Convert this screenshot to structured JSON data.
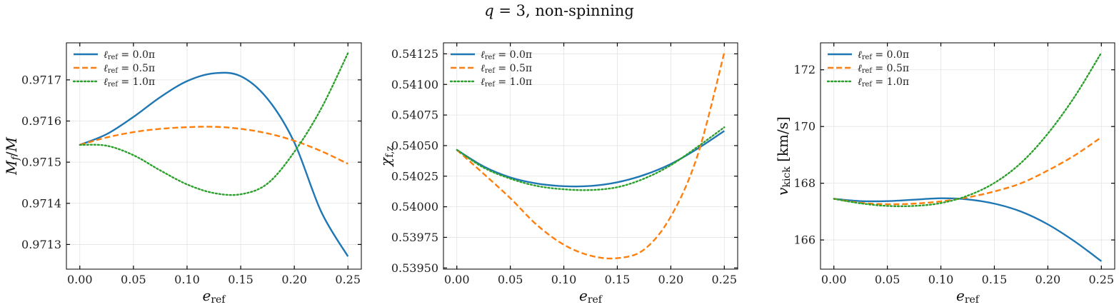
{
  "figure": {
    "title": "q = 3, non-spinning"
  },
  "chart_data": [
    {
      "type": "line",
      "xlabel": "e_ref",
      "ylabel": "M_f/M",
      "xlim": [
        -0.0125,
        0.2625
      ],
      "ylim": [
        0.97124,
        0.97179
      ],
      "xticks": [
        0.0,
        0.05,
        0.1,
        0.15,
        0.2,
        0.25
      ],
      "xtick_labels": [
        "0.00",
        "0.05",
        "0.10",
        "0.15",
        "0.20",
        "0.25"
      ],
      "yticks": [
        0.9713,
        0.9714,
        0.9715,
        0.9716,
        0.9717
      ],
      "ytick_labels": [
        "0.9713",
        "0.9714",
        "0.9715",
        "0.9716",
        "0.9717"
      ],
      "grid": true,
      "legend_position": "top-left",
      "x": [
        0.0,
        0.025,
        0.05,
        0.075,
        0.1,
        0.125,
        0.15,
        0.175,
        0.2,
        0.225,
        0.25
      ],
      "series": [
        {
          "name": "ℓ_ref = 0.0π",
          "color": "#1f77b4",
          "style": "solid",
          "values": [
            0.971542,
            0.971568,
            0.97161,
            0.971658,
            0.971697,
            0.971716,
            0.971709,
            0.971654,
            0.971548,
            0.97138,
            0.971271
          ]
        },
        {
          "name": "ℓ_ref = 0.5π",
          "color": "#ff7f0e",
          "style": "dashed",
          "values": [
            0.971542,
            0.97156,
            0.971573,
            0.971581,
            0.971585,
            0.971586,
            0.971581,
            0.97157,
            0.971552,
            0.971527,
            0.971496
          ]
        },
        {
          "name": "ℓ_ref = 1.0π",
          "color": "#2ca02c",
          "style": "dotted",
          "values": [
            0.971542,
            0.97154,
            0.971517,
            0.97148,
            0.971446,
            0.971425,
            0.971422,
            0.971448,
            0.971525,
            0.97163,
            0.971765
          ]
        }
      ]
    },
    {
      "type": "line",
      "xlabel": "e_ref",
      "ylabel": "χ_f,z",
      "xlim": [
        -0.0125,
        0.2625
      ],
      "ylim": [
        0.53949,
        0.54134
      ],
      "xticks": [
        0.0,
        0.05,
        0.1,
        0.15,
        0.2,
        0.25
      ],
      "xtick_labels": [
        "0.00",
        "0.05",
        "0.10",
        "0.15",
        "0.20",
        "0.25"
      ],
      "yticks": [
        0.5395,
        0.53975,
        0.54,
        0.54025,
        0.5405,
        0.54075,
        0.541,
        0.54125
      ],
      "ytick_labels": [
        "0.53950",
        "0.53975",
        "0.54000",
        "0.54025",
        "0.54050",
        "0.54075",
        "0.54100",
        "0.54125"
      ],
      "grid": true,
      "legend_position": "top-left",
      "x": [
        0.0,
        0.025,
        0.05,
        0.075,
        0.1,
        0.125,
        0.15,
        0.175,
        0.2,
        0.225,
        0.25
      ],
      "series": [
        {
          "name": "ℓ_ref = 0.0π",
          "color": "#1f77b4",
          "style": "solid",
          "values": [
            0.540465,
            0.54033,
            0.54024,
            0.54019,
            0.540168,
            0.54017,
            0.5402,
            0.54026,
            0.54035,
            0.540475,
            0.54062
          ]
        },
        {
          "name": "ℓ_ref = 0.5π",
          "color": "#ff7f0e",
          "style": "dashed",
          "values": [
            0.540465,
            0.54027,
            0.54007,
            0.53985,
            0.53969,
            0.5396,
            0.53958,
            0.53965,
            0.53992,
            0.54042,
            0.54126
          ]
        },
        {
          "name": "ℓ_ref = 1.0π",
          "color": "#2ca02c",
          "style": "dotted",
          "values": [
            0.540465,
            0.54032,
            0.54023,
            0.54017,
            0.540143,
            0.540137,
            0.54016,
            0.54023,
            0.54034,
            0.54049,
            0.54065
          ]
        }
      ]
    },
    {
      "type": "line",
      "xlabel": "e_ref",
      "ylabel": "v_kick [km/s]",
      "xlim": [
        -0.0125,
        0.2625
      ],
      "ylim": [
        164.97,
        172.95
      ],
      "xticks": [
        0.0,
        0.05,
        0.1,
        0.15,
        0.2,
        0.25
      ],
      "xtick_labels": [
        "0.00",
        "0.05",
        "0.10",
        "0.15",
        "0.20",
        "0.25"
      ],
      "yticks": [
        166,
        168,
        170,
        172
      ],
      "ytick_labels": [
        "166",
        "168",
        "170",
        "172"
      ],
      "grid": true,
      "legend_position": "top-left",
      "x": [
        0.0,
        0.025,
        0.05,
        0.075,
        0.1,
        0.125,
        0.15,
        0.175,
        0.2,
        0.225,
        0.25
      ],
      "series": [
        {
          "name": "ℓ_ref = 0.0π",
          "color": "#1f77b4",
          "style": "solid",
          "values": [
            167.45,
            167.37,
            167.37,
            167.42,
            167.47,
            167.43,
            167.28,
            167.0,
            166.55,
            165.95,
            165.25
          ]
        },
        {
          "name": "ℓ_ref = 0.5π",
          "color": "#ff7f0e",
          "style": "dashed",
          "values": [
            167.45,
            167.31,
            167.26,
            167.28,
            167.36,
            167.5,
            167.71,
            168.0,
            168.45,
            168.98,
            169.62
          ]
        },
        {
          "name": "ℓ_ref = 1.0π",
          "color": "#2ca02c",
          "style": "dotted",
          "values": [
            167.45,
            167.29,
            167.2,
            167.2,
            167.3,
            167.56,
            168.01,
            168.72,
            169.75,
            171.05,
            172.6
          ]
        }
      ]
    }
  ]
}
